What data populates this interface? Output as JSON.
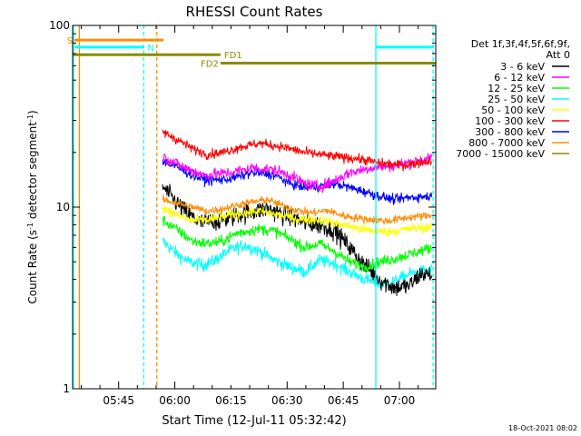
{
  "chart_data": {
    "type": "line",
    "title": "RHESSI Count Rates",
    "xlabel": "Start Time (12-Jul-11 05:32:42)",
    "ylabel": {
      "main": "Count Rate (s",
      "sup1": "-1",
      "mid": " detector segment",
      "sup2": "-1",
      "end": ")"
    },
    "y_scale": "log",
    "ylim": [
      1,
      100
    ],
    "xlim_minutes": [
      0,
      97
    ],
    "x_tick_labels": [
      {
        "label": "05:45",
        "minute": 12.3
      },
      {
        "label": "06:00",
        "minute": 27.3
      },
      {
        "label": "06:15",
        "minute": 42.3
      },
      {
        "label": "06:30",
        "minute": 57.3
      },
      {
        "label": "06:45",
        "minute": 72.3
      },
      {
        "label": "07:00",
        "minute": 87.3
      }
    ],
    "y_tick_labels": [
      {
        "label": "1",
        "value": 1
      },
      {
        "label": "10",
        "value": 10
      },
      {
        "label": "100",
        "value": 100
      }
    ],
    "detector_info": [
      "Det 1f,3f,4f,5f,6f,9f,",
      "Att 0"
    ],
    "legend": [
      {
        "label": "3 - 6 keV",
        "color": "#000000"
      },
      {
        "label": "6 - 12 keV",
        "color": "#ff00ff"
      },
      {
        "label": "12 - 25 keV",
        "color": "#00ff00"
      },
      {
        "label": "25 - 50 keV",
        "color": "#00ffff"
      },
      {
        "label": "50 - 100 keV",
        "color": "#ffff00"
      },
      {
        "label": "100 - 300 keV",
        "color": "#ff0000"
      },
      {
        "label": "300 - 800 keV",
        "color": "#0000ff"
      },
      {
        "label": "800 - 7000 keV",
        "color": "#ff8c00"
      },
      {
        "label": "7000 - 15000 keV",
        "color": "#8b8b00"
      }
    ],
    "series_start_minute": 24,
    "series_end_minute": 96,
    "series": [
      {
        "name": "3 - 6 keV",
        "color": "#000000",
        "noise": 0.12,
        "profile": [
          [
            24,
            13
          ],
          [
            27,
            11
          ],
          [
            30,
            9.5
          ],
          [
            34,
            8.2
          ],
          [
            40,
            8.5
          ],
          [
            45,
            9.2
          ],
          [
            52,
            9.8
          ],
          [
            57,
            9
          ],
          [
            62,
            8.2
          ],
          [
            66,
            8
          ],
          [
            70,
            7.5
          ],
          [
            74,
            6
          ],
          [
            78,
            4.8
          ],
          [
            82,
            4
          ],
          [
            86,
            3.6
          ],
          [
            90,
            3.7
          ],
          [
            93,
            4.3
          ],
          [
            96,
            4.2
          ]
        ]
      },
      {
        "name": "6 - 12 keV",
        "color": "#ff00ff",
        "noise": 0.07,
        "profile": [
          [
            24,
            19
          ],
          [
            30,
            16.5
          ],
          [
            35,
            15
          ],
          [
            42,
            15.5
          ],
          [
            48,
            16.5
          ],
          [
            54,
            16
          ],
          [
            58,
            15
          ],
          [
            62,
            13.5
          ],
          [
            66,
            13
          ],
          [
            70,
            14
          ],
          [
            74,
            15.5
          ],
          [
            80,
            16.5
          ],
          [
            86,
            17
          ],
          [
            92,
            18
          ],
          [
            96,
            18.5
          ]
        ]
      },
      {
        "name": "12 - 25 keV",
        "color": "#00ff00",
        "noise": 0.07,
        "profile": [
          [
            24,
            8.5
          ],
          [
            28,
            7.5
          ],
          [
            32,
            6.5
          ],
          [
            36,
            6.3
          ],
          [
            40,
            6.5
          ],
          [
            44,
            7.2
          ],
          [
            50,
            7.6
          ],
          [
            54,
            7.4
          ],
          [
            58,
            6.7
          ],
          [
            62,
            6
          ],
          [
            66,
            6.3
          ],
          [
            70,
            5.7
          ],
          [
            74,
            5
          ],
          [
            78,
            4.7
          ],
          [
            82,
            5
          ],
          [
            86,
            5.2
          ],
          [
            90,
            5.5
          ],
          [
            96,
            6
          ]
        ]
      },
      {
        "name": "25 - 50 keV",
        "color": "#00ffff",
        "noise": 0.08,
        "profile": [
          [
            24,
            6.5
          ],
          [
            28,
            5.5
          ],
          [
            31,
            5
          ],
          [
            35,
            4.8
          ],
          [
            38,
            5.1
          ],
          [
            42,
            5.8
          ],
          [
            46,
            6.2
          ],
          [
            50,
            5.7
          ],
          [
            54,
            5.1
          ],
          [
            58,
            4.7
          ],
          [
            62,
            4.4
          ],
          [
            66,
            5.1
          ],
          [
            70,
            4.9
          ],
          [
            74,
            4.4
          ],
          [
            78,
            4
          ],
          [
            82,
            3.8
          ],
          [
            86,
            3.9
          ],
          [
            90,
            4.3
          ],
          [
            96,
            4.5
          ]
        ]
      },
      {
        "name": "50 - 100 keV",
        "color": "#ffff00",
        "noise": 0.06,
        "profile": [
          [
            24,
            10
          ],
          [
            28,
            9
          ],
          [
            32,
            8.4
          ],
          [
            38,
            8.6
          ],
          [
            44,
            9.2
          ],
          [
            50,
            9.5
          ],
          [
            56,
            9
          ],
          [
            60,
            8.6
          ],
          [
            66,
            8.5
          ],
          [
            72,
            8
          ],
          [
            78,
            7.5
          ],
          [
            84,
            7.3
          ],
          [
            90,
            7.6
          ],
          [
            96,
            7.8
          ]
        ]
      },
      {
        "name": "100 - 300 keV",
        "color": "#ff0000",
        "noise": 0.06,
        "profile": [
          [
            24,
            26
          ],
          [
            28,
            23.5
          ],
          [
            32,
            21
          ],
          [
            36,
            19.5
          ],
          [
            40,
            20
          ],
          [
            45,
            21.5
          ],
          [
            50,
            22.5
          ],
          [
            56,
            21.5
          ],
          [
            62,
            20
          ],
          [
            66,
            19.5
          ],
          [
            70,
            19
          ],
          [
            76,
            18.5
          ],
          [
            82,
            17.5
          ],
          [
            88,
            17
          ],
          [
            92,
            17.5
          ],
          [
            96,
            18
          ]
        ]
      },
      {
        "name": "300 - 800 keV",
        "color": "#0000ff",
        "noise": 0.06,
        "profile": [
          [
            24,
            18
          ],
          [
            28,
            16.5
          ],
          [
            32,
            15
          ],
          [
            36,
            14
          ],
          [
            42,
            14.3
          ],
          [
            48,
            15.5
          ],
          [
            54,
            15
          ],
          [
            58,
            13.5
          ],
          [
            62,
            12.8
          ],
          [
            66,
            13
          ],
          [
            70,
            13.5
          ],
          [
            76,
            12.5
          ],
          [
            82,
            11.5
          ],
          [
            86,
            11
          ],
          [
            90,
            11.3
          ],
          [
            96,
            11.5
          ]
        ]
      },
      {
        "name": "800 - 7000 keV",
        "color": "#ff8c00",
        "noise": 0.05,
        "profile": [
          [
            24,
            11
          ],
          [
            28,
            10.5
          ],
          [
            32,
            10
          ],
          [
            36,
            9.5
          ],
          [
            40,
            9.8
          ],
          [
            46,
            10.5
          ],
          [
            52,
            11
          ],
          [
            56,
            10.2
          ],
          [
            60,
            9.6
          ],
          [
            64,
            9.3
          ],
          [
            68,
            9.6
          ],
          [
            72,
            9
          ],
          [
            78,
            8.6
          ],
          [
            84,
            8.4
          ],
          [
            90,
            8.8
          ],
          [
            96,
            9
          ]
        ]
      }
    ],
    "attenuator_bars": [
      {
        "label": "S",
        "color": "#ff8c00",
        "start": 0.5,
        "end": 24.3,
        "value": 83,
        "label_side": "left"
      },
      {
        "label": "N",
        "color": "#00ffff",
        "start": 0.5,
        "end": 19,
        "value": 76,
        "label_side": "right"
      },
      {
        "label": "",
        "color": "#00ffff",
        "start": 81,
        "end": 96.5,
        "value": 76,
        "label_side": "none"
      }
    ],
    "flare_bars": [
      {
        "label": "FD1",
        "color": "#8b8b00",
        "start": 0,
        "end": 39.5,
        "value": 69,
        "label_side": "right"
      },
      {
        "label": "FD2",
        "color": "#8b8b00",
        "start": 39.5,
        "end": 97,
        "value": 62,
        "label_side": "left"
      }
    ],
    "vertical_markers": [
      {
        "minute": 0.2,
        "color": "#00ffff",
        "dashed": false
      },
      {
        "minute": 1.8,
        "color": "#ff8c00",
        "dashed": false
      },
      {
        "minute": 19,
        "color": "#00ffff",
        "dashed": true
      },
      {
        "minute": 22.5,
        "color": "#ff8c00",
        "dashed": true
      },
      {
        "minute": 81,
        "color": "#00ffff",
        "dashed": false
      },
      {
        "minute": 96.3,
        "color": "#00ffff",
        "dashed": true
      }
    ]
  },
  "footer": {
    "timestamp": "18-Oct-2021 08:02"
  }
}
